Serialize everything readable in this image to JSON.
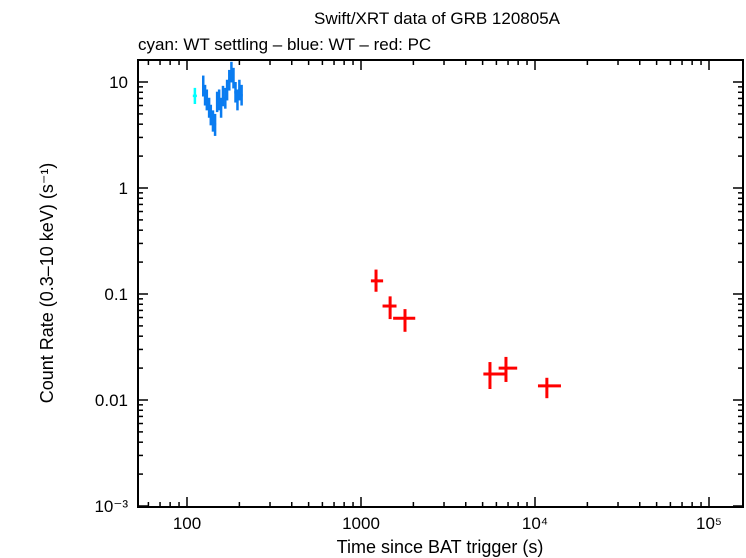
{
  "chart_data": {
    "type": "scatter",
    "title": "Swift/XRT data of GRB 120805A",
    "subtitle": "cyan: WT settling – blue: WT – red: PC",
    "xlabel": "Time since BAT trigger (s)",
    "ylabel": "Count Rate (0.3–10 keV) (s⁻¹)",
    "xscale": "log",
    "yscale": "log",
    "xlim": [
      52,
      160000
    ],
    "ylim": [
      0.001,
      17
    ],
    "xticks": [
      {
        "v": 100,
        "label": "100"
      },
      {
        "v": 1000,
        "label": "1000"
      },
      {
        "v": 10000,
        "label": "10⁴"
      },
      {
        "v": 100000,
        "label": "10⁵"
      }
    ],
    "yticks": [
      {
        "v": 10,
        "label": "10"
      },
      {
        "v": 1,
        "label": "1"
      },
      {
        "v": 0.1,
        "label": "0.1"
      },
      {
        "v": 0.01,
        "label": "0.01"
      },
      {
        "v": 0.001,
        "label": "10⁻³"
      }
    ],
    "grid": false,
    "series": [
      {
        "color": "#00ffff",
        "points": [
          [
            111,
            7.4,
            108,
            114,
            6.2,
            8.8
          ]
        ]
      },
      {
        "color": "#0a7cf0",
        "points": [
          [
            124,
            9.2,
            122,
            126,
            7.3,
            11.5
          ],
          [
            127,
            7.5,
            126,
            129,
            6.0,
            9.4
          ],
          [
            130,
            6.8,
            129,
            132,
            5.4,
            8.5
          ],
          [
            134,
            5.7,
            132,
            135,
            4.6,
            7.1
          ],
          [
            137,
            4.9,
            135,
            139,
            3.9,
            6.1
          ],
          [
            141,
            4.3,
            139,
            143,
            3.4,
            5.4
          ],
          [
            145,
            4.0,
            143,
            147,
            3.1,
            5.0
          ],
          [
            149,
            6.5,
            147,
            151,
            5.2,
            8.1
          ],
          [
            153,
            6.8,
            151,
            155,
            5.4,
            8.5
          ],
          [
            157,
            5.7,
            155,
            159,
            4.6,
            7.1
          ],
          [
            161,
            7.4,
            159,
            163,
            5.9,
            9.2
          ],
          [
            166,
            7.0,
            163,
            168,
            5.6,
            8.8
          ],
          [
            170,
            8.4,
            168,
            172,
            6.7,
            10.5
          ],
          [
            175,
            10.4,
            172,
            177,
            8.3,
            13.0
          ],
          [
            180,
            12.4,
            177,
            182,
            9.9,
            15.5
          ],
          [
            185,
            10.9,
            182,
            187,
            8.7,
            13.6
          ],
          [
            190,
            8.0,
            187,
            192,
            6.4,
            10.0
          ],
          [
            195,
            6.8,
            192,
            197,
            5.4,
            8.5
          ],
          [
            200,
            8.4,
            197,
            203,
            6.7,
            10.5
          ],
          [
            206,
            7.5,
            203,
            209,
            6.0,
            9.4
          ]
        ]
      },
      {
        "color": "#ff0000",
        "points": [
          [
            1220,
            0.133,
            1140,
            1340,
            0.105,
            0.17
          ],
          [
            1470,
            0.077,
            1330,
            1600,
            0.058,
            0.095
          ],
          [
            1790,
            0.059,
            1530,
            2050,
            0.044,
            0.072
          ],
          [
            5510,
            0.0176,
            5050,
            6750,
            0.0127,
            0.0228
          ],
          [
            6810,
            0.02,
            6180,
            7900,
            0.0148,
            0.0255
          ],
          [
            11700,
            0.0136,
            10400,
            14100,
            0.0104,
            0.0162
          ]
        ]
      }
    ]
  }
}
